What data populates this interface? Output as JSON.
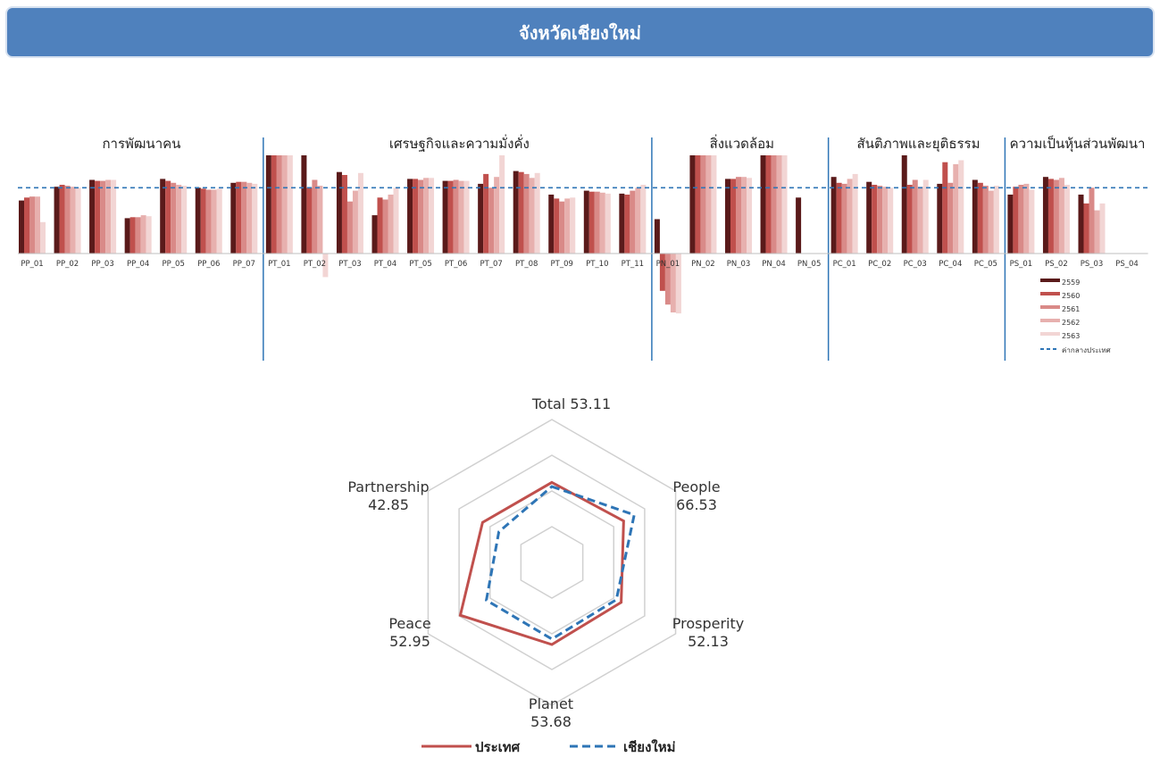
{
  "header": {
    "title": "จังหวัดเชียงใหม่"
  },
  "chart_data": [
    {
      "type": "bar",
      "groups": [
        {
          "label": "การพัฒนาคน",
          "categories": [
            "PP_01",
            "PP_02",
            "PP_03",
            "PP_04",
            "PP_05",
            "PP_06",
            "PP_07"
          ]
        },
        {
          "label": "เศรษฐกิจและความมั่งคั่ง",
          "categories": [
            "PT_01",
            "PT_02",
            "PT_03",
            "PT_04",
            "PT_05",
            "PT_06",
            "PT_07",
            "PT_08",
            "PT_09",
            "PT_10",
            "PT_11"
          ]
        },
        {
          "label": "สิ่งแวดล้อม",
          "categories": [
            "PN_01",
            "PN_02",
            "PN_03",
            "PN_04",
            "PN_05"
          ]
        },
        {
          "label": "สันติภาพและยุติธรรม",
          "categories": [
            "PC_01",
            "PC_02",
            "PC_03",
            "PC_04",
            "PC_05"
          ]
        },
        {
          "label": "ความเป็นหุ้นส่วนพัฒนา",
          "categories": [
            "PS_01",
            "PS_02",
            "PS_03",
            "PS_04"
          ]
        }
      ],
      "series": [
        {
          "name": "2559",
          "color": "#5a1a1a",
          "values": [
            54,
            68,
            75,
            36,
            76,
            67,
            72,
            100,
            100,
            83,
            39,
            76,
            74,
            71,
            84,
            60,
            64,
            61,
            35,
            100,
            76,
            100,
            57,
            78,
            73,
            100,
            71,
            75,
            60,
            78,
            60
          ]
        },
        {
          "name": "2560",
          "color": "#c0504d",
          "values": [
            57,
            70,
            74,
            37,
            74,
            66,
            73,
            100,
            67,
            80,
            57,
            76,
            74,
            81,
            83,
            56,
            63,
            60,
            -38,
            100,
            76,
            100,
            0,
            72,
            70,
            70,
            93,
            72,
            68,
            76,
            51
          ]
        },
        {
          "name": "2561",
          "color": "#d98a88",
          "values": [
            58,
            69,
            74,
            37,
            72,
            65,
            73,
            100,
            75,
            53,
            55,
            75,
            75,
            67,
            81,
            53,
            63,
            64,
            -52,
            100,
            78,
            100,
            0,
            71,
            69,
            75,
            72,
            69,
            70,
            75,
            67
          ]
        },
        {
          "name": "2562",
          "color": "#e7b0ae",
          "values": [
            58,
            68,
            75,
            39,
            70,
            65,
            72,
            100,
            69,
            64,
            60,
            77,
            74,
            78,
            77,
            56,
            62,
            67,
            -60,
            100,
            78,
            100,
            0,
            76,
            68,
            68,
            91,
            64,
            71,
            77,
            44
          ]
        },
        {
          "name": "2563",
          "color": "#f2d5d4",
          "values": [
            32,
            67,
            75,
            38,
            69,
            66,
            71,
            100,
            -24,
            82,
            67,
            77,
            74,
            100,
            82,
            57,
            61,
            70,
            -61,
            100,
            77,
            100,
            0,
            81,
            67,
            75,
            95,
            69,
            65,
            70,
            51
          ]
        }
      ],
      "reference_line": {
        "name": "ค่ากลางประเทศ",
        "value": 67,
        "color": "#2e75b6"
      }
    },
    {
      "type": "radar",
      "axes": [
        {
          "label": "Total",
          "value": "53.11"
        },
        {
          "label": "People",
          "value": "66.53"
        },
        {
          "label": "Prosperity",
          "value": "52.13"
        },
        {
          "label": "Planet",
          "value": "53.68"
        },
        {
          "label": "Peace",
          "value": "52.95"
        },
        {
          "label": "Partnership",
          "value": "42.85"
        }
      ],
      "series": [
        {
          "name": "ประเทศ",
          "color": "#c0504d",
          "style": "solid",
          "values": [
            56.0,
            58.0,
            56.0,
            57.5,
            74.0,
            56.0
          ]
        },
        {
          "name": "เชียงใหม่",
          "color": "#2e75b6",
          "style": "dashed",
          "values": [
            53.11,
            66.53,
            52.13,
            53.68,
            52.95,
            42.85
          ]
        }
      ],
      "rlim": [
        0,
        100
      ],
      "grid_rings": [
        25,
        50,
        75,
        100
      ]
    }
  ]
}
